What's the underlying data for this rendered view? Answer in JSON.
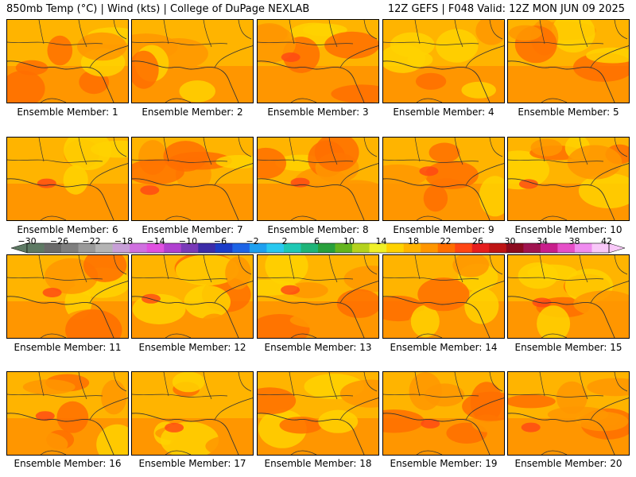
{
  "header": {
    "left": "850mb Temp (°C) | Wind (kts) | College of DuPage NEXLAB",
    "right": "12Z GEFS | F048 Valid: 12Z MON JUN 09 2025"
  },
  "members": [
    {
      "label": "Ensemble Member: 1"
    },
    {
      "label": "Ensemble Member: 2"
    },
    {
      "label": "Ensemble Member: 3"
    },
    {
      "label": "Ensemble Member: 4"
    },
    {
      "label": "Ensemble Member: 5"
    },
    {
      "label": "Ensemble Member: 6"
    },
    {
      "label": "Ensemble Member: 7"
    },
    {
      "label": "Ensemble Member: 8"
    },
    {
      "label": "Ensemble Member: 9"
    },
    {
      "label": "Ensemble Member: 10"
    },
    {
      "label": "Ensemble Member: 11"
    },
    {
      "label": "Ensemble Member: 12"
    },
    {
      "label": "Ensemble Member: 13"
    },
    {
      "label": "Ensemble Member: 14"
    },
    {
      "label": "Ensemble Member: 15"
    },
    {
      "label": "Ensemble Member: 16"
    },
    {
      "label": "Ensemble Member: 17"
    },
    {
      "label": "Ensemble Member: 18"
    },
    {
      "label": "Ensemble Member: 19"
    },
    {
      "label": "Ensemble Member: 20"
    }
  ],
  "colorbar": {
    "labels": [
      "−30",
      "−26",
      "−22",
      "−18",
      "−14",
      "−10",
      "−6",
      "−2",
      "2",
      "6",
      "10",
      "14",
      "18",
      "22",
      "26",
      "30",
      "34",
      "38",
      "42"
    ],
    "colors": [
      "#5e7a64",
      "#6a6a6a",
      "#7f7f7f",
      "#9a9a9a",
      "#b4b4b4",
      "#c8a0d8",
      "#d070e0",
      "#e050e0",
      "#b040d0",
      "#7a3ab8",
      "#3c2ca8",
      "#1c3cc8",
      "#1e64e6",
      "#1ea0f0",
      "#28c8f0",
      "#1ec8b4",
      "#1eb478",
      "#28a03c",
      "#64b41e",
      "#b4d21e",
      "#f0f028",
      "#ffd200",
      "#ffb400",
      "#ff9600",
      "#ff6e00",
      "#ff4614",
      "#e61e1e",
      "#be1414",
      "#8c0a1e",
      "#a01450",
      "#c81e8c",
      "#e650c8",
      "#f08cf0",
      "#f8c8f8"
    ]
  }
}
